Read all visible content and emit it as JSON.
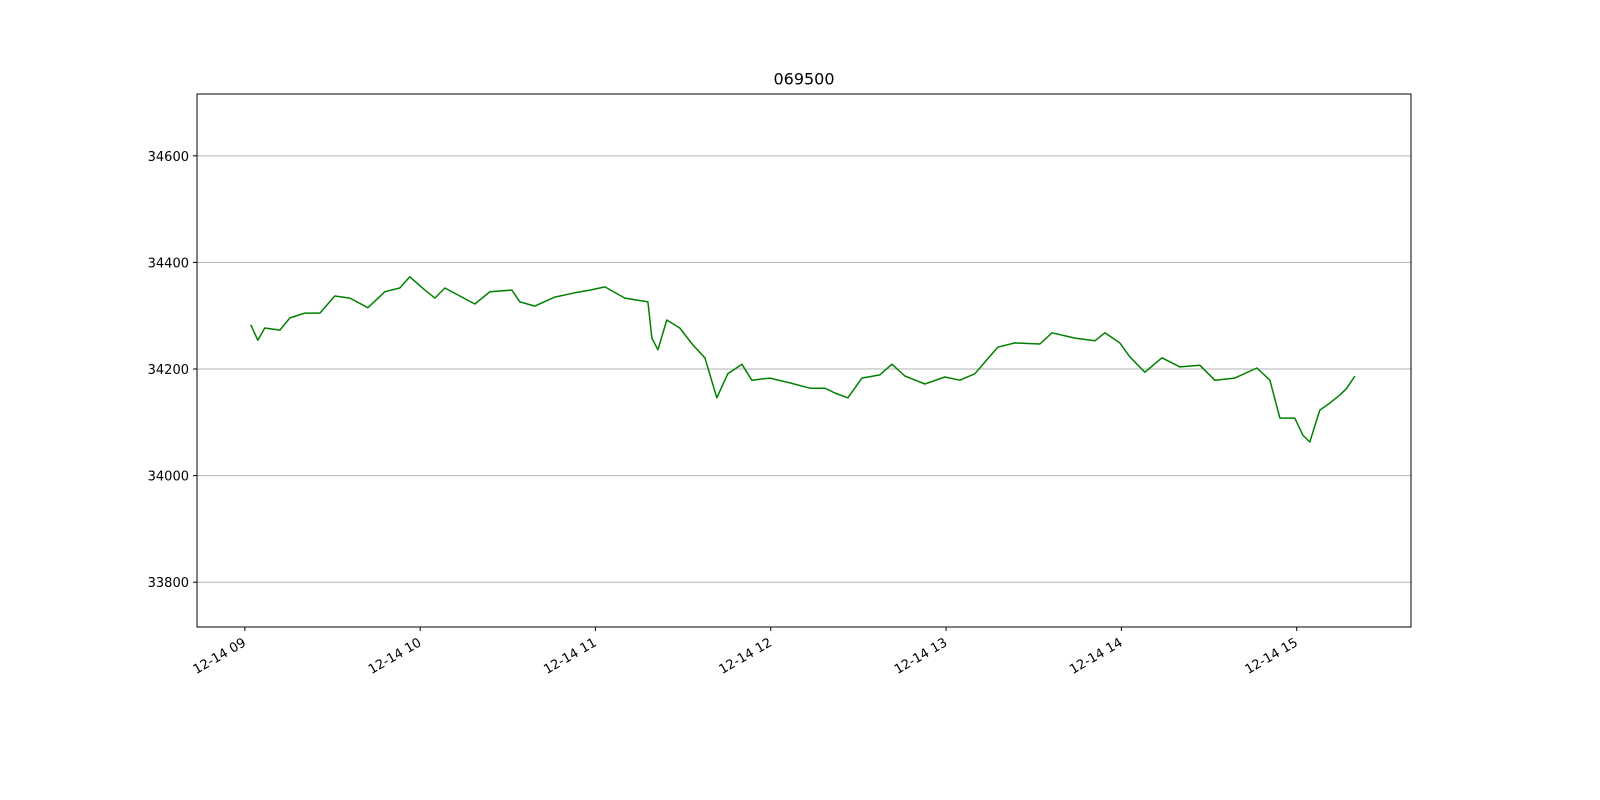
{
  "chart_data": {
    "type": "line",
    "title": "069500",
    "color": "#008000",
    "x": [
      9.034,
      9.074,
      9.114,
      9.2,
      9.257,
      9.342,
      9.428,
      9.513,
      9.599,
      9.702,
      9.799,
      9.884,
      9.941,
      10.027,
      10.084,
      10.141,
      10.226,
      10.312,
      10.398,
      10.523,
      10.569,
      10.654,
      10.768,
      10.882,
      10.968,
      11.054,
      11.168,
      11.299,
      11.322,
      11.356,
      11.407,
      11.481,
      11.556,
      11.624,
      11.692,
      11.755,
      11.835,
      11.892,
      11.995,
      12.109,
      12.223,
      12.309,
      12.366,
      12.44,
      12.52,
      12.622,
      12.691,
      12.765,
      12.879,
      12.993,
      13.079,
      13.164,
      13.221,
      13.295,
      13.392,
      13.535,
      13.604,
      13.735,
      13.849,
      13.906,
      13.991,
      14.048,
      14.134,
      14.231,
      14.334,
      14.448,
      14.533,
      14.647,
      14.773,
      14.847,
      14.904,
      14.989,
      15.035,
      15.075,
      15.132,
      15.189,
      15.246,
      15.286,
      15.332
    ],
    "values": [
      34283,
      34254,
      34277,
      34273,
      34296,
      34305,
      34305,
      34337,
      34333,
      34315,
      34345,
      34352,
      34373,
      34348,
      34333,
      34352,
      34337,
      34322,
      34345,
      34348,
      34326,
      34318,
      34335,
      34343,
      34348,
      34354,
      34333,
      34326,
      34258,
      34236,
      34292,
      34277,
      34245,
      34221,
      34146,
      34191,
      34209,
      34179,
      34183,
      34174,
      34164,
      34164,
      34155,
      34146,
      34183,
      34189,
      34209,
      34187,
      34172,
      34185,
      34179,
      34191,
      34213,
      34241,
      34249,
      34247,
      34268,
      34258,
      34253,
      34268,
      34249,
      34223,
      34194,
      34221,
      34204,
      34207,
      34179,
      34183,
      34202,
      34179,
      34108,
      34108,
      34076,
      34063,
      34123,
      34136,
      34151,
      34164,
      34187
    ],
    "xlim": [
      8.727,
      15.652
    ],
    "xticks": [
      {
        "value": 9,
        "label": "12-14 09"
      },
      {
        "value": 10,
        "label": "12-14 10"
      },
      {
        "value": 11,
        "label": "12-14 11"
      },
      {
        "value": 12,
        "label": "12-14 12"
      },
      {
        "value": 13,
        "label": "12-14 13"
      },
      {
        "value": 14,
        "label": "12-14 14"
      },
      {
        "value": 15,
        "label": "12-14 15"
      }
    ],
    "ylim": [
      33716,
      34716
    ],
    "yticks": [
      33800,
      34000,
      34200,
      34400,
      34600
    ],
    "grid": "y"
  }
}
